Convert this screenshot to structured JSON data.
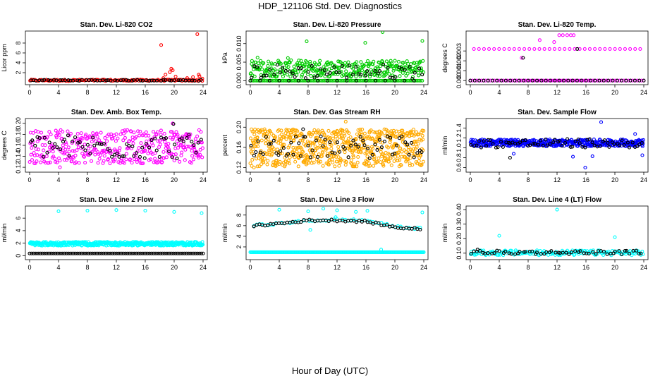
{
  "title": "HDP_121106  Std. Dev. Diagnostics",
  "xlabel": "Hour of Day (UTC)",
  "chart_data": [
    {
      "type": "scatter",
      "title": "Stan. Dev. Li-820 CO2",
      "ylabel": "Licor ppm",
      "xlim": [
        0,
        24
      ],
      "ylim": [
        0,
        10
      ],
      "xticks": [
        "0",
        "4",
        "8",
        "12",
        "16",
        "20",
        "24"
      ],
      "xtick_values": [
        0,
        4,
        8,
        12,
        16,
        20,
        24
      ],
      "yticks": [
        "2",
        "4",
        "6",
        "8"
      ],
      "ytick_values": [
        2,
        4,
        6,
        8
      ],
      "grid": false,
      "series": [
        {
          "color": "#ff0000",
          "band": {
            "lo": 0.3,
            "hi": 0.6,
            "n": 140,
            "from": 0,
            "to": 24
          },
          "points": [
            [
              18.2,
              7.6
            ],
            [
              18.5,
              0.9
            ],
            [
              18.8,
              1.6
            ],
            [
              19.4,
              2.1
            ],
            [
              19.6,
              2.8
            ],
            [
              19.8,
              2.5
            ],
            [
              20.2,
              1.2
            ],
            [
              21.8,
              0.9
            ],
            [
              22.6,
              1.1
            ],
            [
              23.2,
              9.8
            ],
            [
              23.4,
              1.6
            ],
            [
              23.5,
              1.3
            ],
            [
              23.9,
              0.8
            ]
          ]
        },
        {
          "color": "#000000",
          "band": {
            "lo": 0.35,
            "hi": 0.55,
            "n": 60,
            "from": 0,
            "to": 24
          },
          "points": []
        }
      ]
    },
    {
      "type": "scatter",
      "title": "Stan. Dev. Li-820 Pressure",
      "ylabel": "kPa",
      "xlim": [
        0,
        24
      ],
      "ylim": [
        -0.0005,
        0.0128
      ],
      "xticks": [
        "0",
        "4",
        "8",
        "12",
        "16",
        "20",
        "24"
      ],
      "xtick_values": [
        0,
        4,
        8,
        12,
        16,
        20,
        24
      ],
      "yticks": [
        "0.000",
        "0.005",
        "0.010"
      ],
      "ytick_values": [
        0,
        0.005,
        0.01
      ],
      "grid": false,
      "series": [
        {
          "color": "#00cc00",
          "band": {
            "lo": 0.001,
            "hi": 0.0055,
            "n": 330,
            "from": 0,
            "to": 24
          },
          "base": 0,
          "points": [
            [
              7.8,
              0.0106
            ],
            [
              15.9,
              0.0102
            ],
            [
              18.3,
              0.0131
            ],
            [
              23.8,
              0.0107
            ],
            [
              1.0,
              0.0062
            ],
            [
              5.2,
              0.0061
            ]
          ]
        },
        {
          "color": "#000000",
          "band": {
            "lo": 0.0005,
            "hi": 0.0045,
            "n": 55,
            "from": 0,
            "to": 24
          },
          "base": 0,
          "points": []
        }
      ]
    },
    {
      "type": "scatter",
      "title": "Stan. Dev. Li-820 Temp.",
      "ylabel": "degrees C",
      "xlim": [
        0,
        24
      ],
      "ylim": [
        -0.0002,
        0.0048
      ],
      "xticks": [
        "0",
        "4",
        "8",
        "12",
        "16",
        "20",
        "24"
      ],
      "xtick_values": [
        0,
        4,
        8,
        12,
        16,
        20,
        24
      ],
      "yticks": [
        "0.000",
        "0.001",
        "0.002",
        "0.003"
      ],
      "ytick_values": [
        0,
        0.001,
        0.002,
        0.003
      ],
      "grid": false,
      "series": [
        {
          "color": "#ff00ff",
          "rows": [
            {
              "y": 0,
              "n": 80,
              "from": 0,
              "to": 24
            },
            {
              "y": 0.0032,
              "n": 34,
              "from": 0.5,
              "to": 23.5
            }
          ],
          "points": [
            [
              12.3,
              0.0046
            ],
            [
              12.8,
              0.0046
            ],
            [
              13.4,
              0.0046
            ],
            [
              13.9,
              0.0046
            ],
            [
              14.3,
              0.0046
            ],
            [
              11.6,
              0.0039
            ],
            [
              7.1,
              0.0023
            ],
            [
              9.6,
              0.0041
            ]
          ]
        },
        {
          "color": "#000000",
          "rows": [
            {
              "y": 0,
              "n": 40,
              "from": 0,
              "to": 24
            }
          ],
          "points": [
            [
              7.3,
              0.0023
            ],
            [
              14.8,
              0.0032
            ]
          ]
        }
      ]
    },
    {
      "type": "scatter",
      "title": "Stan. Dev. Amb. Box Temp.",
      "ylabel": "degrees C",
      "xlim": [
        0,
        24
      ],
      "ylim": [
        0.115,
        0.205
      ],
      "xticks": [
        "0",
        "4",
        "8",
        "12",
        "16",
        "20",
        "24"
      ],
      "xtick_values": [
        0,
        4,
        8,
        12,
        16,
        20,
        24
      ],
      "yticks": [
        "0.12",
        "0.14",
        "0.16",
        "0.18",
        "0.20"
      ],
      "ytick_values": [
        0.12,
        0.14,
        0.16,
        0.18,
        0.2
      ],
      "grid": false,
      "series": [
        {
          "color": "#ff00ff",
          "band": {
            "lo": 0.127,
            "hi": 0.188,
            "n": 380,
            "from": 0,
            "to": 24
          },
          "points": [
            [
              4.2,
              0.12
            ],
            [
              19.8,
              0.2
            ]
          ]
        },
        {
          "color": "#000000",
          "band": {
            "lo": 0.135,
            "hi": 0.18,
            "n": 70,
            "from": 0,
            "to": 24
          },
          "points": [
            [
              19.9,
              0.199
            ]
          ]
        }
      ]
    },
    {
      "type": "scatter",
      "title": "Stan. Dev. Gas Stream RH",
      "ylabel": "percent",
      "xlim": [
        0,
        24
      ],
      "ylim": [
        0.115,
        0.213
      ],
      "xticks": [
        "0",
        "4",
        "8",
        "12",
        "16",
        "20",
        "24"
      ],
      "xtick_values": [
        0,
        4,
        8,
        12,
        16,
        20,
        24
      ],
      "yticks": [
        "0.12",
        "0.16",
        "0.20"
      ],
      "ytick_values": [
        0.12,
        0.16,
        0.2
      ],
      "grid": false,
      "series": [
        {
          "color": "#ffaa00",
          "band": {
            "lo": 0.122,
            "hi": 0.196,
            "n": 650,
            "from": 0,
            "to": 24
          },
          "points": [
            [
              13.2,
              0.211
            ],
            [
              0.5,
              0.12
            ]
          ]
        },
        {
          "color": "#000000",
          "band": {
            "lo": 0.138,
            "hi": 0.182,
            "n": 70,
            "from": 0,
            "to": 24
          },
          "points": [
            [
              7.3,
              0.196
            ]
          ]
        }
      ]
    },
    {
      "type": "scatter",
      "title": "Stan. Dev. Sample Flow",
      "ylabel": "ml/min",
      "xlim": [
        0,
        24
      ],
      "ylim": [
        0.55,
        1.55
      ],
      "xticks": [
        "0",
        "4",
        "8",
        "12",
        "16",
        "20",
        "24"
      ],
      "xtick_values": [
        0,
        4,
        8,
        12,
        16,
        20,
        24
      ],
      "yticks": [
        "0.6",
        "0.8",
        "1.0",
        "1.2",
        "1.4"
      ],
      "ytick_values": [
        0.6,
        0.8,
        1.0,
        1.2,
        1.4
      ],
      "grid": false,
      "series": [
        {
          "color": "#0000ff",
          "band": {
            "lo": 1.03,
            "hi": 1.17,
            "n": 420,
            "from": 0,
            "to": 24
          },
          "points": [
            [
              15.9,
              0.6
            ],
            [
              18.1,
              1.52
            ],
            [
              14.2,
              0.82
            ],
            [
              16.9,
              0.83
            ],
            [
              23.8,
              0.85
            ],
            [
              6.0,
              0.88
            ],
            [
              22.8,
              1.28
            ]
          ]
        },
        {
          "color": "#000000",
          "band": {
            "lo": 1.0,
            "hi": 1.18,
            "n": 70,
            "from": 0,
            "to": 24
          },
          "points": [
            [
              5.5,
              0.8
            ]
          ]
        }
      ]
    },
    {
      "type": "scatter",
      "title": "Stan. Dev. Line 2 Flow",
      "ylabel": "ml/min",
      "xlim": [
        0,
        24
      ],
      "ylim": [
        -0.3,
        7.6
      ],
      "xticks": [
        "0",
        "4",
        "8",
        "12",
        "16",
        "20",
        "24"
      ],
      "xtick_values": [
        0,
        4,
        8,
        12,
        16,
        20,
        24
      ],
      "yticks": [
        "0",
        "2",
        "4",
        "6"
      ],
      "ytick_values": [
        0,
        2,
        4,
        6
      ],
      "grid": false,
      "series": [
        {
          "color": "#00ffff",
          "band": {
            "lo": 1.6,
            "hi": 2.2,
            "n": 450,
            "from": 0,
            "to": 24
          },
          "points": [
            [
              4.0,
              7.1
            ],
            [
              8.0,
              7.2
            ],
            [
              12.0,
              7.3
            ],
            [
              16.0,
              7.2
            ],
            [
              20.0,
              7.0
            ],
            [
              23.8,
              6.8
            ]
          ]
        },
        {
          "color": "#000000",
          "rows": [
            {
              "y": 0.35,
              "n": 95,
              "from": 0,
              "to": 24
            }
          ],
          "points": []
        }
      ]
    },
    {
      "type": "scatter",
      "title": "Stan. Dev. Line 3 Flow",
      "ylabel": "ml/min",
      "xlim": [
        0,
        24
      ],
      "ylim": [
        0,
        9.3
      ],
      "xticks": [
        "0",
        "4",
        "8",
        "12",
        "16",
        "20",
        "24"
      ],
      "xtick_values": [
        0,
        4,
        8,
        12,
        16,
        20,
        24
      ],
      "yticks": [
        "2",
        "4",
        "6",
        "8"
      ],
      "ytick_values": [
        2,
        4,
        6,
        8
      ],
      "grid": false,
      "series": [
        {
          "color": "#00ffff",
          "rows": [
            {
              "y": 1.0,
              "n": 200,
              "from": 0,
              "to": 24
            }
          ],
          "trend": [
            [
              0,
              6.0
            ],
            [
              4,
              6.4
            ],
            [
              8,
              6.9
            ],
            [
              12,
              7.1
            ],
            [
              16,
              7.0
            ],
            [
              20,
              5.8
            ],
            [
              24,
              5.4
            ]
          ],
          "points": [
            [
              4.0,
              9.0
            ],
            [
              8.0,
              8.7
            ],
            [
              10.1,
              9.2
            ],
            [
              12.0,
              8.9
            ],
            [
              14.6,
              8.6
            ],
            [
              16.2,
              8.8
            ],
            [
              23.8,
              8.5
            ],
            [
              8.3,
              5.2
            ],
            [
              18.1,
              1.5
            ],
            [
              11.8,
              7.6
            ]
          ]
        },
        {
          "color": "#000000",
          "trend": [
            [
              0,
              5.9
            ],
            [
              4,
              6.4
            ],
            [
              8,
              7.0
            ],
            [
              12,
              7.0
            ],
            [
              16,
              6.8
            ],
            [
              20,
              5.7
            ],
            [
              24,
              5.3
            ]
          ],
          "points": []
        }
      ]
    },
    {
      "type": "scatter",
      "title": "Stan. Dev. Line 4 (LT) Flow",
      "ylabel": "ml/min",
      "xlim": [
        0,
        24
      ],
      "ylim": [
        0.07,
        0.41
      ],
      "xticks": [
        "0",
        "4",
        "8",
        "12",
        "16",
        "20",
        "24"
      ],
      "xtick_values": [
        0,
        4,
        8,
        12,
        16,
        20,
        24
      ],
      "yticks": [
        "0.10",
        "0.20",
        "0.30",
        "0.40"
      ],
      "ytick_values": [
        0.1,
        0.2,
        0.3,
        0.4
      ],
      "grid": false,
      "series": [
        {
          "color": "#00ffff",
          "band": {
            "lo": 0.085,
            "hi": 0.12,
            "n": 170,
            "from": 0,
            "to": 24
          },
          "points": [
            [
              12.0,
              0.4
            ],
            [
              4.0,
              0.22
            ],
            [
              20.0,
              0.21
            ]
          ]
        },
        {
          "color": "#000000",
          "band": {
            "lo": 0.092,
            "hi": 0.118,
            "n": 60,
            "from": 0,
            "to": 24
          },
          "points": [
            [
              1.0,
              0.125
            ]
          ]
        }
      ]
    }
  ]
}
